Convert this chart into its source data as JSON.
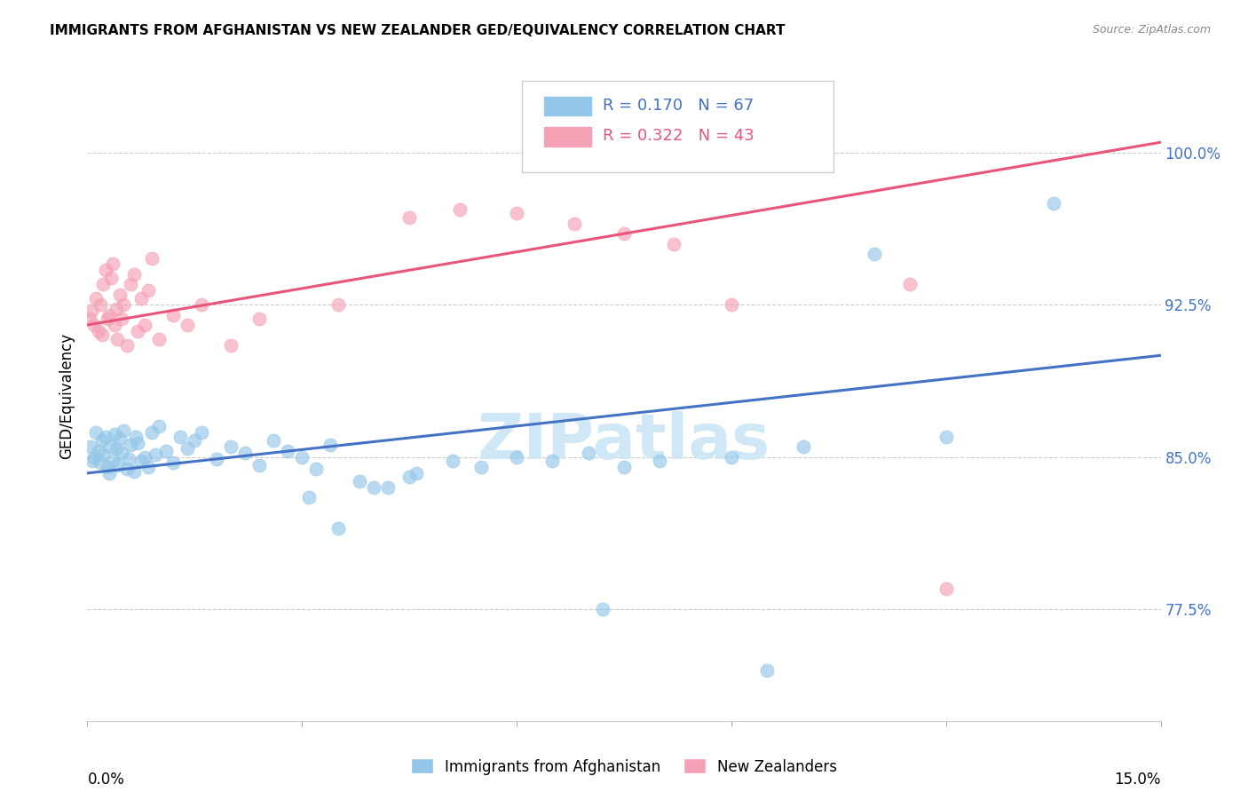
{
  "title": "IMMIGRANTS FROM AFGHANISTAN VS NEW ZEALANDER GED/EQUIVALENCY CORRELATION CHART",
  "source": "Source: ZipAtlas.com",
  "ylabel_label": "GED/Equivalency",
  "legend_label1": "Immigrants from Afghanistan",
  "legend_label2": "New Zealanders",
  "R1": 0.17,
  "N1": 67,
  "R2": 0.322,
  "N2": 43,
  "color_blue": "#93c6e8",
  "color_pink": "#f4a0b5",
  "color_blue_line": "#4472c4",
  "color_pink_line": "#e8547a",
  "color_blue_text": "#4472c4",
  "x_min": 0.0,
  "x_max": 15.0,
  "y_min": 72.0,
  "y_max": 104.0,
  "ytick_vals": [
    77.5,
    85.0,
    92.5,
    100.0
  ],
  "blue_line_y0": 84.2,
  "blue_line_y1": 90.0,
  "pink_line_y0": 91.5,
  "pink_line_y1": 100.5,
  "blue_x": [
    0.05,
    0.07,
    0.1,
    0.12,
    0.15,
    0.18,
    0.2,
    0.22,
    0.25,
    0.28,
    0.3,
    0.32,
    0.35,
    0.38,
    0.4,
    0.42,
    0.45,
    0.48,
    0.5,
    0.55,
    0.58,
    0.6,
    0.65,
    0.68,
    0.7,
    0.75,
    0.8,
    0.85,
    0.9,
    0.95,
    1.0,
    1.1,
    1.2,
    1.3,
    1.4,
    1.5,
    1.6,
    1.8,
    2.0,
    2.2,
    2.4,
    2.6,
    2.8,
    3.0,
    3.2,
    3.4,
    3.8,
    4.2,
    4.6,
    5.1,
    5.5,
    6.0,
    6.5,
    7.0,
    7.5,
    8.0,
    9.0,
    10.0,
    11.0,
    12.0,
    3.1,
    3.5,
    4.0,
    4.5,
    7.2,
    9.5,
    13.5
  ],
  "blue_y": [
    85.5,
    84.8,
    85.0,
    86.2,
    85.3,
    84.7,
    85.8,
    85.1,
    86.0,
    84.5,
    84.2,
    85.5,
    84.8,
    86.1,
    85.4,
    84.6,
    85.9,
    85.2,
    86.3,
    84.4,
    84.9,
    85.6,
    84.3,
    86.0,
    85.7,
    84.8,
    85.0,
    84.5,
    86.2,
    85.1,
    86.5,
    85.3,
    84.7,
    86.0,
    85.4,
    85.8,
    86.2,
    84.9,
    85.5,
    85.2,
    84.6,
    85.8,
    85.3,
    85.0,
    84.4,
    85.6,
    83.8,
    83.5,
    84.2,
    84.8,
    84.5,
    85.0,
    84.8,
    85.2,
    84.5,
    84.8,
    85.0,
    85.5,
    95.0,
    86.0,
    83.0,
    81.5,
    83.5,
    84.0,
    77.5,
    74.5,
    97.5
  ],
  "pink_x": [
    0.03,
    0.06,
    0.09,
    0.12,
    0.15,
    0.18,
    0.2,
    0.22,
    0.25,
    0.28,
    0.3,
    0.33,
    0.35,
    0.38,
    0.4,
    0.42,
    0.45,
    0.48,
    0.5,
    0.55,
    0.6,
    0.65,
    0.7,
    0.75,
    0.8,
    0.85,
    0.9,
    1.0,
    1.2,
    1.4,
    1.6,
    2.0,
    2.4,
    3.5,
    4.5,
    5.2,
    6.0,
    6.8,
    7.5,
    8.2,
    9.0,
    11.5,
    12.0
  ],
  "pink_y": [
    91.8,
    92.2,
    91.5,
    92.8,
    91.2,
    92.5,
    91.0,
    93.5,
    94.2,
    91.8,
    92.0,
    93.8,
    94.5,
    91.5,
    92.3,
    90.8,
    93.0,
    91.8,
    92.5,
    90.5,
    93.5,
    94.0,
    91.2,
    92.8,
    91.5,
    93.2,
    94.8,
    90.8,
    92.0,
    91.5,
    92.5,
    90.5,
    91.8,
    92.5,
    96.8,
    97.2,
    97.0,
    96.5,
    96.0,
    95.5,
    92.5,
    93.5,
    78.5
  ],
  "watermark": "ZIPatlas",
  "watermark_color": "#d0e8f5"
}
